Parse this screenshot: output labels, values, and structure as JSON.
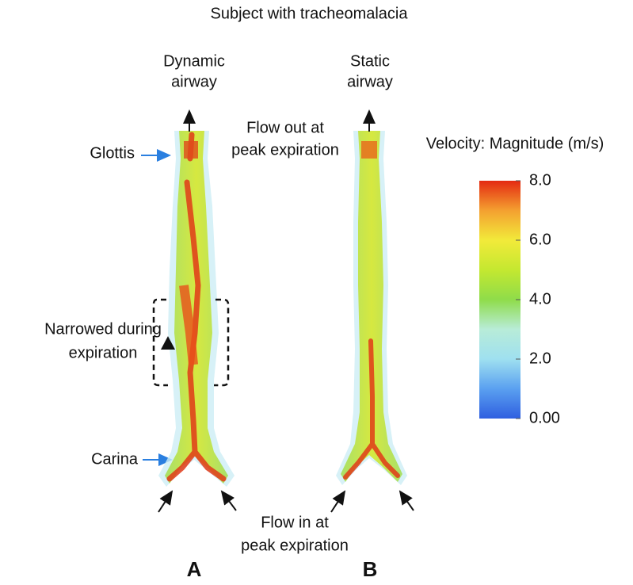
{
  "title": "Subject with tracheomalacia",
  "panels": [
    {
      "label": "A",
      "heading": [
        "Dynamic",
        "airway"
      ]
    },
    {
      "label": "B",
      "heading": [
        "Static",
        "airway"
      ]
    }
  ],
  "annotations": {
    "flow_out": [
      "Flow out at",
      "peak expiration"
    ],
    "flow_in": [
      "Flow in at",
      "peak expiration"
    ],
    "glottis": "Glottis",
    "carina": "Carina",
    "narrowed": [
      "Narrowed during",
      "expiration"
    ]
  },
  "colorbar": {
    "title": "Velocity: Magnitude (m/s)",
    "range": [
      0,
      8
    ],
    "ticks": [
      {
        "value": 8,
        "label": "8.0"
      },
      {
        "value": 6,
        "label": "6.0"
      },
      {
        "value": 4,
        "label": "4.0"
      },
      {
        "value": 2,
        "label": "2.0"
      },
      {
        "value": 0,
        "label": "0.00"
      }
    ]
  }
}
